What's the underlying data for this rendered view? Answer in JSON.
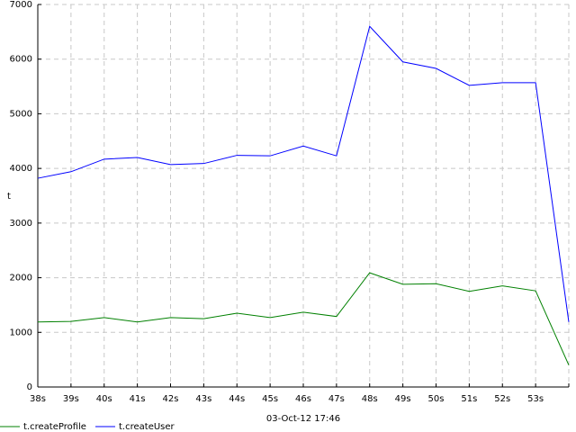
{
  "chart_data": {
    "type": "line",
    "x_label": "03-Oct-12 17:46",
    "y_label": "t",
    "categories": [
      "38s",
      "39s",
      "40s",
      "41s",
      "42s",
      "43s",
      "44s",
      "45s",
      "46s",
      "47s",
      "48s",
      "49s",
      "50s",
      "51s",
      "52s",
      "53s",
      null
    ],
    "series": [
      {
        "name": "t.createProfile",
        "color": "#008000",
        "values": [
          1190,
          1200,
          1270,
          1190,
          1270,
          1250,
          1350,
          1270,
          1370,
          1290,
          2090,
          1880,
          1890,
          1750,
          1850,
          1760,
          400
        ]
      },
      {
        "name": "t.createUser",
        "color": "#0000ff",
        "values": [
          3820,
          3940,
          4170,
          4200,
          4070,
          4090,
          4240,
          4230,
          4410,
          4230,
          6600,
          5950,
          5830,
          5520,
          5570,
          5570,
          1190
        ]
      }
    ],
    "ylim": [
      0,
      7000
    ],
    "yticks": [
      0,
      1000,
      2000,
      3000,
      4000,
      5000,
      6000,
      7000
    ],
    "grid": true,
    "legend": "bottom-left"
  }
}
